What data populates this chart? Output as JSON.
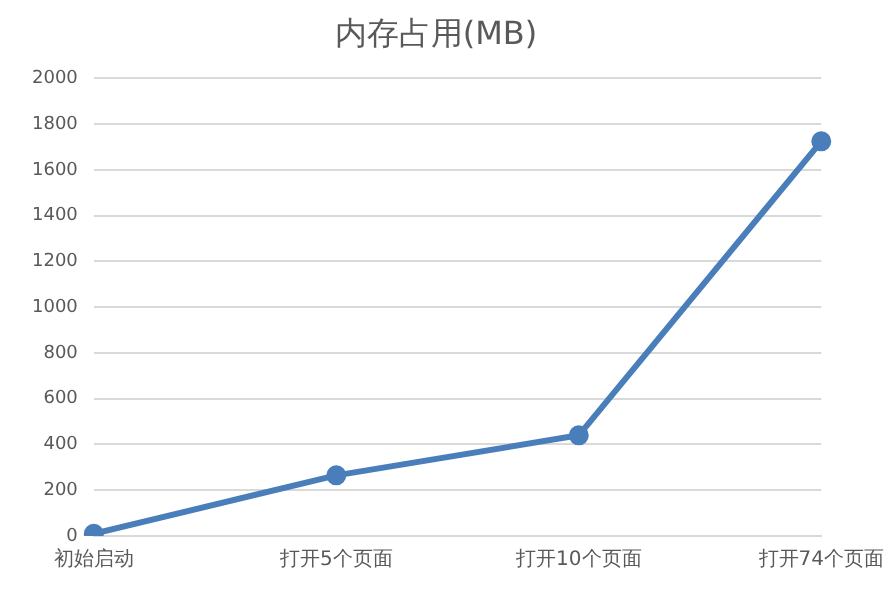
{
  "chart_data": {
    "type": "line",
    "title": "内存占用(MB)",
    "categories": [
      "初始启动",
      "打开5个页面",
      "打开10个页面",
      "打开74个页面"
    ],
    "series": [
      {
        "color": "#4a7ebb",
        "values": [
          10,
          265,
          440,
          1725
        ]
      }
    ],
    "ylim": [
      0,
      2000
    ],
    "yticks": [
      0,
      200,
      400,
      600,
      800,
      1000,
      1200,
      1400,
      1600,
      1800,
      2000
    ],
    "grid": "y",
    "legend": false,
    "marker": "circle",
    "line_style": "solid"
  }
}
